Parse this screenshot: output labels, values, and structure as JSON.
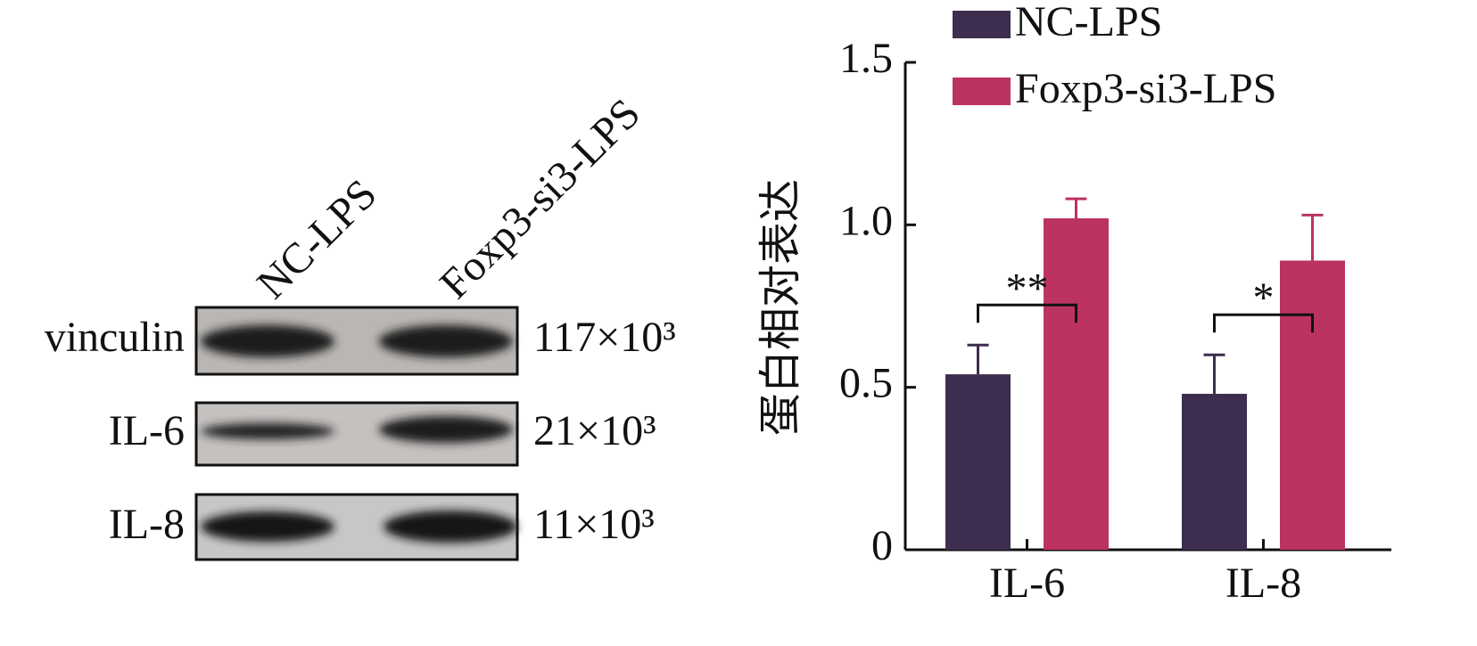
{
  "blot": {
    "lanes": [
      "NC-LPS",
      "Foxp3-si3-LPS"
    ],
    "rows": [
      {
        "protein": "vinculin",
        "size": "117×10³"
      },
      {
        "protein": "IL-6",
        "size": "21×10³"
      },
      {
        "protein": "IL-8",
        "size": "11×10³"
      }
    ]
  },
  "chart_data": {
    "type": "bar",
    "ylabel": "蛋白相对表达",
    "categories": [
      "IL-6",
      "IL-8"
    ],
    "series": [
      {
        "name": "NC-LPS",
        "color": "#3d2d4f",
        "values": [
          0.54,
          0.48
        ],
        "errors": [
          0.09,
          0.12
        ]
      },
      {
        "name": "Foxp3-si3-LPS",
        "color": "#bb3360",
        "values": [
          1.02,
          0.89
        ],
        "errors": [
          0.06,
          0.14
        ]
      }
    ],
    "significance": [
      "**",
      "*"
    ],
    "ylim": [
      0,
      1.5
    ],
    "yticks": [
      0,
      0.5,
      {
        "value": 1,
        "label": "1.0"
      },
      1.5
    ]
  }
}
